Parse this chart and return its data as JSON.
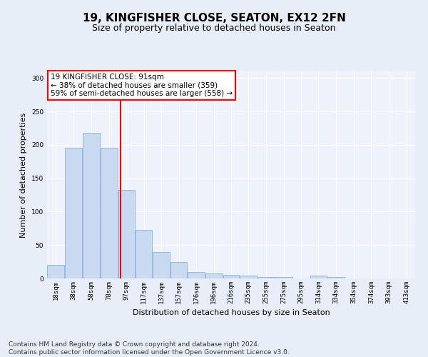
{
  "title_line1": "19, KINGFISHER CLOSE, SEATON, EX12 2FN",
  "title_line2": "Size of property relative to detached houses in Seaton",
  "xlabel": "Distribution of detached houses by size in Seaton",
  "ylabel": "Number of detached properties",
  "footer_line1": "Contains HM Land Registry data © Crown copyright and database right 2024.",
  "footer_line2": "Contains public sector information licensed under the Open Government Licence v3.0.",
  "annotation_line1": "19 KINGFISHER CLOSE: 91sqm",
  "annotation_line2": "← 38% of detached houses are smaller (359)",
  "annotation_line3": "59% of semi-detached houses are larger (558) →",
  "property_size": 91,
  "bar_labels": [
    "18sqm",
    "38sqm",
    "58sqm",
    "78sqm",
    "97sqm",
    "117sqm",
    "137sqm",
    "157sqm",
    "176sqm",
    "196sqm",
    "216sqm",
    "235sqm",
    "255sqm",
    "275sqm",
    "295sqm",
    "314sqm",
    "334sqm",
    "354sqm",
    "374sqm",
    "393sqm",
    "413sqm"
  ],
  "bar_values": [
    20,
    196,
    218,
    196,
    133,
    73,
    40,
    25,
    10,
    8,
    5,
    4,
    2,
    2,
    0,
    4,
    2,
    0,
    0,
    0,
    0
  ],
  "bar_edges": [
    8,
    28,
    48,
    68,
    88,
    107,
    127,
    147,
    166,
    186,
    206,
    225,
    245,
    265,
    285,
    304,
    324,
    344,
    364,
    383,
    403,
    423
  ],
  "bar_color": "#c9d9f0",
  "bar_edge_color": "#7fa8d6",
  "vline_x": 91,
  "vline_color": "red",
  "ylim": [
    0,
    310
  ],
  "yticks": [
    0,
    50,
    100,
    150,
    200,
    250,
    300
  ],
  "bg_color": "#e8eef8",
  "plot_bg_color": "#eef2fa",
  "grid_color": "white",
  "annotation_box_color": "white",
  "annotation_box_edge": "red",
  "title_fontsize": 11,
  "subtitle_fontsize": 9,
  "label_fontsize": 8,
  "tick_fontsize": 6.5,
  "footer_fontsize": 6.5,
  "annotation_fontsize": 7.5
}
